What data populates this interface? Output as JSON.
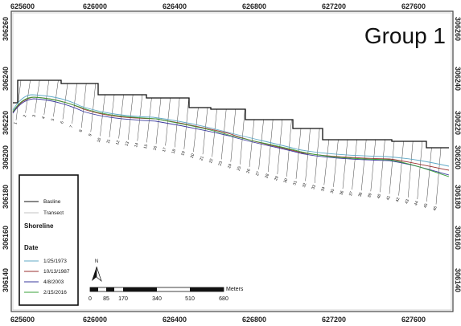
{
  "title": "Group 1",
  "x_ticks": [
    "625600",
    "626000",
    "626400",
    "626800",
    "627200",
    "627600"
  ],
  "y_ticks": [
    "306260",
    "306240",
    "306220",
    "306200",
    "306180",
    "306160",
    "306140"
  ],
  "transect_labels": [
    "1",
    "2",
    "3",
    "4",
    "5",
    "6",
    "7",
    "8",
    "9",
    "10",
    "11",
    "12",
    "13",
    "14",
    "15",
    "16",
    "17",
    "18",
    "19",
    "20",
    "21",
    "22",
    "23",
    "24",
    "25",
    "26",
    "27",
    "28",
    "29",
    "30",
    "31",
    "32",
    "33",
    "34",
    "35",
    "36",
    "37",
    "38",
    "39",
    "40",
    "41",
    "42",
    "43",
    "44",
    "45",
    "46"
  ],
  "legend": {
    "baseline_label": "Basline",
    "transect_label": "Transect",
    "shoreline_heading": "Shoreline",
    "date_heading": "Date",
    "dates": [
      {
        "label": "1/25/1973",
        "color": "#5fa8c6"
      },
      {
        "label": "10/13/1987",
        "color": "#9a2f2f"
      },
      {
        "label": "4/8/2003",
        "color": "#3a3a9c"
      },
      {
        "label": "2/15/2016",
        "color": "#3aa03a"
      }
    ]
  },
  "north_label": "N",
  "scalebar": {
    "unit": "Meters",
    "labels": [
      "0",
      "85",
      "170",
      "340",
      "510",
      "680"
    ]
  }
}
